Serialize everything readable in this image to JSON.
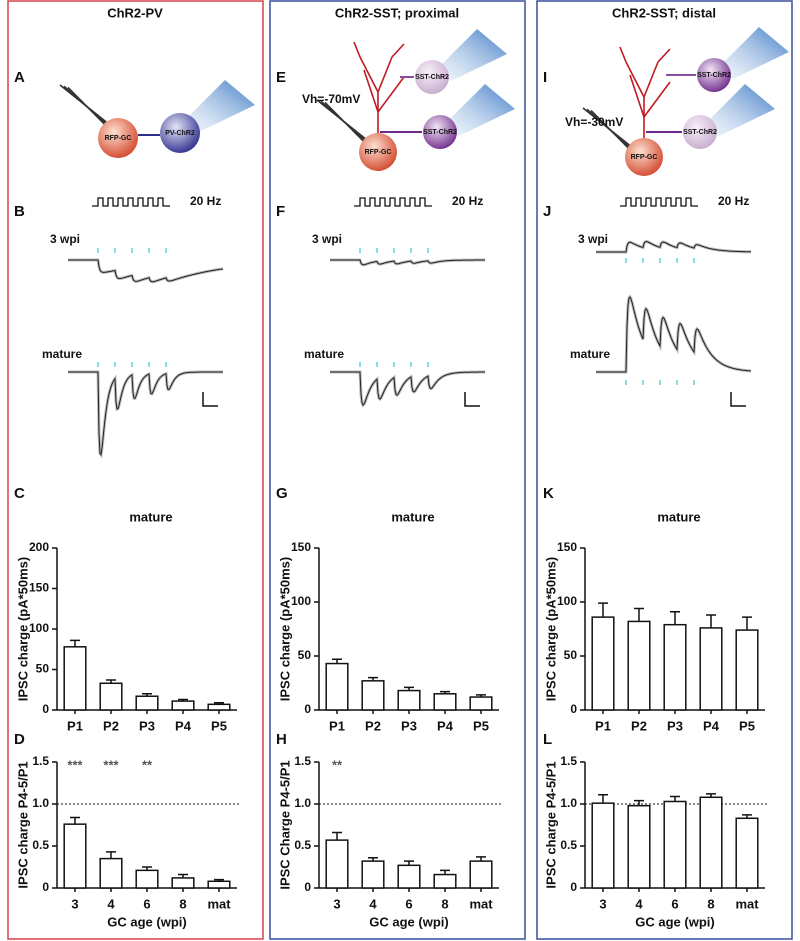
{
  "columns": [
    {
      "title": "ChR2-PV",
      "letters": [
        "A",
        "B",
        "C",
        "D"
      ],
      "diagram": [
        "RFP-GC",
        "PV-ChR2"
      ],
      "stimulus": "20 Hz",
      "traces": [
        "3 wpi",
        "mature"
      ]
    },
    {
      "title": "ChR2-SST; proximal",
      "letters": [
        "E",
        "F",
        "G",
        "H"
      ],
      "diagram": [
        "Vh=-70mV",
        "SST-ChR2",
        "SST-ChR2",
        "RFP-GC"
      ],
      "stimulus": "20 Hz",
      "traces": [
        "3 wpi",
        "mature"
      ]
    },
    {
      "title": "ChR2-SST; distal",
      "letters": [
        "I",
        "J",
        "K",
        "L"
      ],
      "diagram": [
        "Vh=-30mV",
        "SST-ChR2",
        "SST-ChR2",
        "RFP-GC"
      ],
      "stimulus": "20 Hz",
      "traces": [
        "3 wpi",
        "mature"
      ]
    }
  ],
  "chart_data": [
    {
      "type": "bar",
      "subtitle": "mature",
      "ylabel": "IPSC charge (pA*50ms)",
      "categories": [
        "P1",
        "P2",
        "P3",
        "P4",
        "P5"
      ],
      "values": [
        78,
        33,
        17,
        11,
        7
      ],
      "errors": [
        8,
        4,
        3,
        2,
        2
      ],
      "ylim": [
        0,
        200
      ],
      "yticks": [
        0,
        50,
        100,
        150,
        200
      ],
      "color": "#ffffff"
    },
    {
      "type": "bar",
      "ylabel": "IPSC charge P4-5/P1",
      "xlabel": "GC age (wpi)",
      "categories": [
        "3",
        "4",
        "6",
        "8",
        "mat"
      ],
      "values": [
        0.76,
        0.35,
        0.21,
        0.12,
        0.08
      ],
      "errors": [
        0.08,
        0.08,
        0.04,
        0.04,
        0.02
      ],
      "annotations": [
        "***",
        "***",
        "**",
        null,
        null
      ],
      "reference": 1,
      "ylim": [
        0,
        1.5
      ],
      "yticks": [
        0,
        0.5,
        {
          "value": 1,
          "label": "1.0"
        },
        1.5
      ],
      "color": "#ffffff"
    },
    {
      "type": "bar",
      "subtitle": "mature",
      "ylabel": "IPSC charge (pA*50ms)",
      "categories": [
        "P1",
        "P2",
        "P3",
        "P4",
        "P5"
      ],
      "values": [
        43,
        27,
        18,
        15,
        12
      ],
      "errors": [
        4,
        3,
        3,
        2,
        2
      ],
      "ylim": [
        0,
        150
      ],
      "yticks": [
        0,
        50,
        100,
        150
      ],
      "color": "#ffffff"
    },
    {
      "type": "bar",
      "ylabel": "IPSC Charge P4-5/P1",
      "xlabel": "GC age (wpi)",
      "categories": [
        "3",
        "4",
        "6",
        "8",
        "mat"
      ],
      "values": [
        0.57,
        0.32,
        0.27,
        0.16,
        0.32
      ],
      "errors": [
        0.09,
        0.04,
        0.05,
        0.05,
        0.05
      ],
      "annotations": [
        "**",
        null,
        null,
        null,
        null
      ],
      "reference": 1,
      "ylim": [
        0,
        1.5
      ],
      "yticks": [
        0,
        0.5,
        {
          "value": 1,
          "label": "1.0"
        },
        1.5
      ],
      "color": "#ffffff"
    },
    {
      "type": "bar",
      "subtitle": "mature",
      "ylabel": "IPSC charge (pA*50ms)",
      "categories": [
        "P1",
        "P2",
        "P3",
        "P4",
        "P5"
      ],
      "values": [
        86,
        82,
        79,
        76,
        74
      ],
      "errors": [
        13,
        12,
        12,
        12,
        12
      ],
      "ylim": [
        0,
        150
      ],
      "yticks": [
        0,
        50,
        100,
        150
      ],
      "color": "#ffffff"
    },
    {
      "type": "bar",
      "ylabel": "IPSC charge P4-5/P1",
      "xlabel": "GC age (wpi)",
      "categories": [
        "3",
        "4",
        "6",
        "8",
        "mat"
      ],
      "values": [
        1.01,
        0.98,
        1.03,
        1.08,
        0.83
      ],
      "errors": [
        0.1,
        0.06,
        0.06,
        0.04,
        0.04
      ],
      "reference": 1,
      "ylim": [
        0,
        1.5
      ],
      "yticks": [
        0,
        0.5,
        {
          "value": 1,
          "label": "1.0"
        },
        1.5
      ],
      "color": "#ffffff"
    }
  ]
}
